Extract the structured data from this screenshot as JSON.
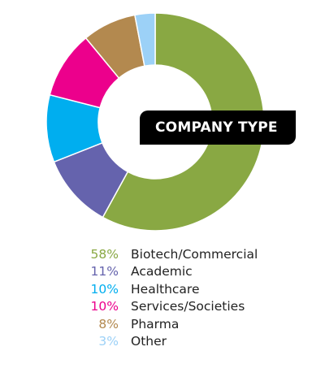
{
  "chart_data": {
    "type": "pie",
    "title": "COMPANY TYPE",
    "series": [
      {
        "name": "Biotech/Commercial",
        "percent_label": "58%",
        "value": 58,
        "color": "#89a843"
      },
      {
        "name": "Academic",
        "percent_label": "11%",
        "value": 11,
        "color": "#6563ad"
      },
      {
        "name": "Healthcare",
        "percent_label": "10%",
        "value": 10,
        "color": "#00aeef"
      },
      {
        "name": "Services/Societies",
        "percent_label": "10%",
        "value": 10,
        "color": "#ec008c"
      },
      {
        "name": "Pharma",
        "percent_label": "8%",
        "value": 8,
        "color": "#b3894f"
      },
      {
        "name": "Other",
        "percent_label": "3%",
        "value": 3,
        "color": "#9cd1f7"
      }
    ],
    "legend_position": "bottom",
    "donut": true
  }
}
